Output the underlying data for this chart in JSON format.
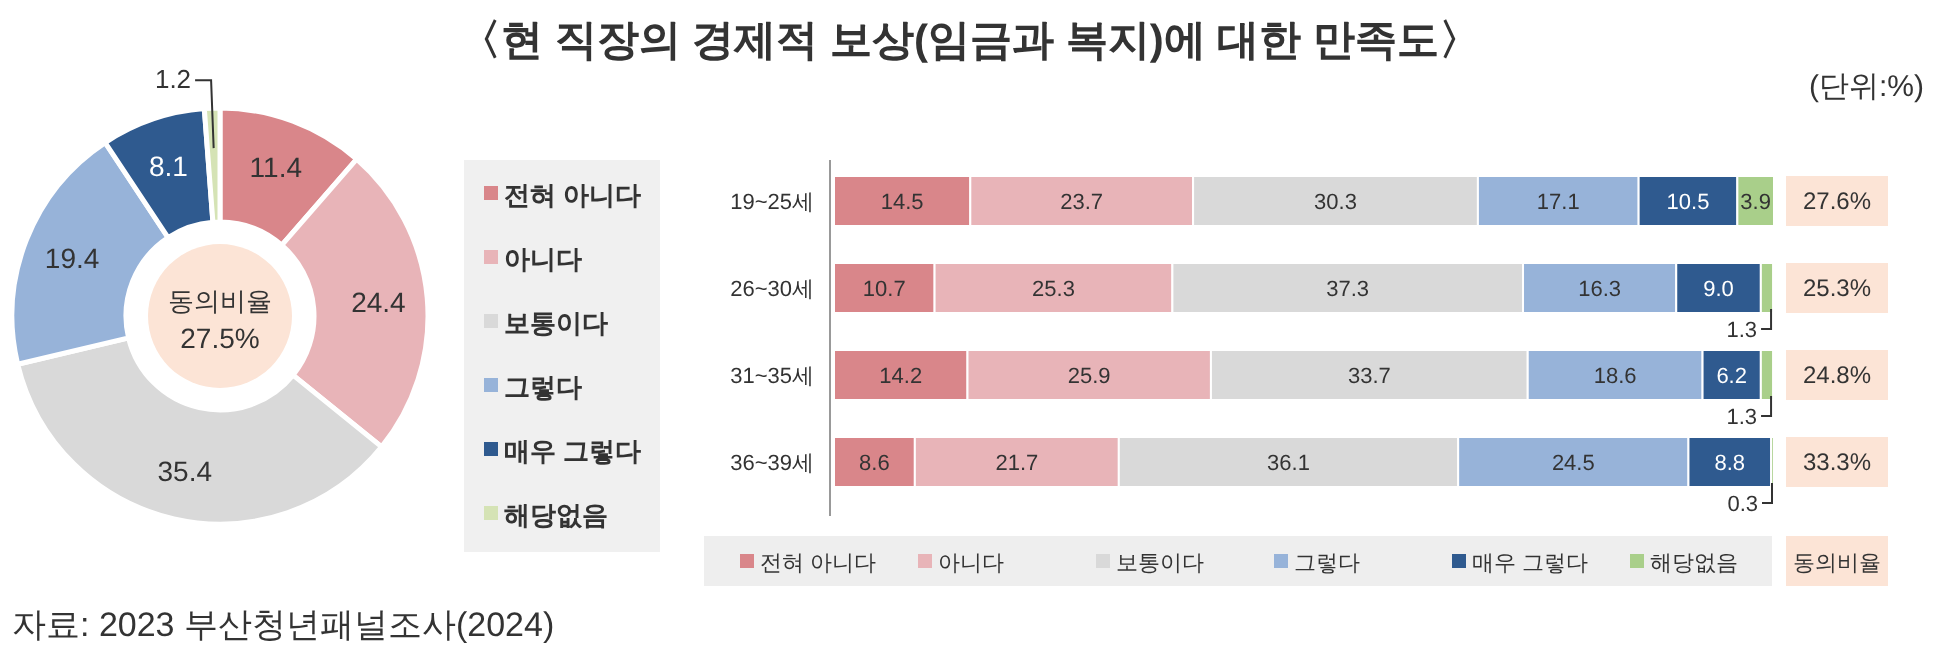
{
  "chart_data": [
    {
      "type": "donut",
      "title": "〈현 직장의 경제적 보상(임금과 복지)에 대한 만족도〉",
      "categories": [
        "전혀 아니다",
        "아니다",
        "보통이다",
        "그렇다",
        "매우 그렇다",
        "해당없음"
      ],
      "values": [
        11.4,
        24.4,
        35.4,
        19.4,
        8.1,
        1.2
      ],
      "colors": [
        "#d9868a",
        "#e8b4b8",
        "#d9d9d9",
        "#97b3d9",
        "#2f5a8f",
        "#d5e3b5"
      ],
      "data_labels": true,
      "legend": "right",
      "annotations": [
        "동의비율",
        "27.5%",
        "자료: 2023 부산청년패널조사(2024)"
      ]
    },
    {
      "type": "bar",
      "orientation": "horizontal",
      "stacked": true,
      "categories": [
        "19~25세",
        "26~30세",
        "31~35세",
        "36~39세"
      ],
      "legend": "bottom",
      "series": [
        {
          "name": "전혀 아니다",
          "color": "#d9868a",
          "values": [
            14.5,
            10.7,
            14.2,
            8.6
          ],
          "value_labels": [
            "14.5",
            "10.7",
            "14.2",
            "8.6"
          ]
        },
        {
          "name": "아니다",
          "color": "#e8b4b8",
          "values": [
            23.7,
            25.3,
            25.9,
            21.7
          ],
          "value_labels": [
            "23.7",
            "25.3",
            "25.9",
            "21.7"
          ]
        },
        {
          "name": "보통이다",
          "color": "#d9d9d9",
          "values": [
            30.3,
            37.3,
            33.7,
            36.1
          ],
          "value_labels": [
            "30.3",
            "37.3",
            "33.7",
            "36.1"
          ]
        },
        {
          "name": "그렇다",
          "color": "#97b3d9",
          "values": [
            17.1,
            16.3,
            18.6,
            24.5
          ],
          "value_labels": [
            "17.1",
            "16.3",
            "18.6",
            "24.5"
          ]
        },
        {
          "name": "매우 그렇다",
          "color": "#2f5a8f",
          "values": [
            10.5,
            9.0,
            6.2,
            8.8
          ],
          "value_labels": [
            "10.5",
            "9.0",
            "6.2",
            "8.8"
          ]
        },
        {
          "name": "해당없음",
          "color": "#a9cf8a",
          "values": [
            3.9,
            1.3,
            1.3,
            0.3
          ],
          "value_labels": [
            "3.9",
            "1.3",
            "1.3",
            "0.3"
          ]
        }
      ],
      "annotations": [
        "(단위:%)",
        "동의비율",
        "27.6%",
        "25.3%",
        "24.8%",
        "33.3%"
      ]
    }
  ]
}
